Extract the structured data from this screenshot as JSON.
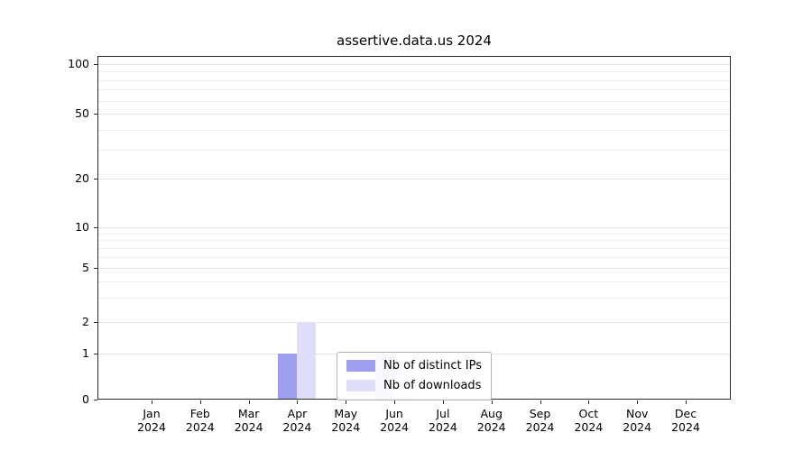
{
  "chart_data": {
    "type": "bar",
    "title": "assertive.data.us 2024",
    "categories": [
      "Jan",
      "Feb",
      "Mar",
      "Apr",
      "May",
      "Jun",
      "Jul",
      "Aug",
      "Sep",
      "Oct",
      "Nov",
      "Dec"
    ],
    "year_label": "2024",
    "series": [
      {
        "name": "Nb of distinct IPs",
        "color": "#9f9ff0",
        "values": [
          0,
          0,
          0,
          1,
          0,
          1,
          0,
          0,
          0,
          0,
          0,
          0
        ]
      },
      {
        "name": "Nb of downloads",
        "color": "#dedef9",
        "values": [
          0,
          0,
          0,
          2,
          0,
          1,
          0,
          0,
          0,
          0,
          0,
          0
        ]
      }
    ],
    "yticks": [
      0,
      1,
      2,
      5,
      10,
      20,
      50,
      100
    ],
    "ylim": [
      0,
      100
    ],
    "yscale": "log-like",
    "grid": "horizontal major and minor, light gray",
    "legend_position": "bottom-center inside plot"
  }
}
